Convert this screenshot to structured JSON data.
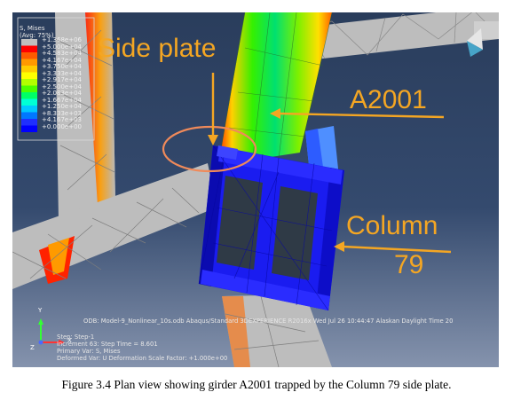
{
  "figure": {
    "caption": "Figure 3.4 Plan view showing girder A2001 trapped by the Column 79 side plate."
  },
  "callouts": {
    "side_plate": "Side plate",
    "girder": "A2001",
    "column_line1": "Column",
    "column_line2": "79"
  },
  "legend": {
    "title_line1": "S, Mises",
    "title_line2": "(Avg: 75%)",
    "labels": [
      "+1.368e+06",
      "+5.000e+04",
      "+4.583e+04",
      "+4.167e+04",
      "+3.750e+04",
      "+3.333e+04",
      "+2.917e+04",
      "+2.500e+04",
      "+2.083e+04",
      "+1.667e+04",
      "+1.250e+04",
      "+8.333e+03",
      "+4.167e+03",
      "+0.000e+00"
    ],
    "colors": [
      "#bfbfbf",
      "#ff0000",
      "#ff5a00",
      "#ff9900",
      "#ffcc00",
      "#ffff00",
      "#b3ff00",
      "#4dff00",
      "#00ff66",
      "#00ffd5",
      "#00c8ff",
      "#0077ff",
      "#1f2fff",
      "#0000ff"
    ]
  },
  "status": {
    "odb_line": "ODB: Model-9_Nonlinear_10s.odb    Abaqus/Standard 3DEXPERIENCE R2016x    Wed Jul 26 10:44:47 Alaskan Daylight Time 20",
    "step": "Step: Step-1",
    "increment": "Increment    63: Step Time =    8.601",
    "primary_var": "Primary Var: S, Mises",
    "deformed_var": "Deformed Var: U   Deformation Scale Factor: +1.000e+00"
  },
  "axes": {
    "x": "X",
    "y": "Y",
    "z": "Z"
  }
}
